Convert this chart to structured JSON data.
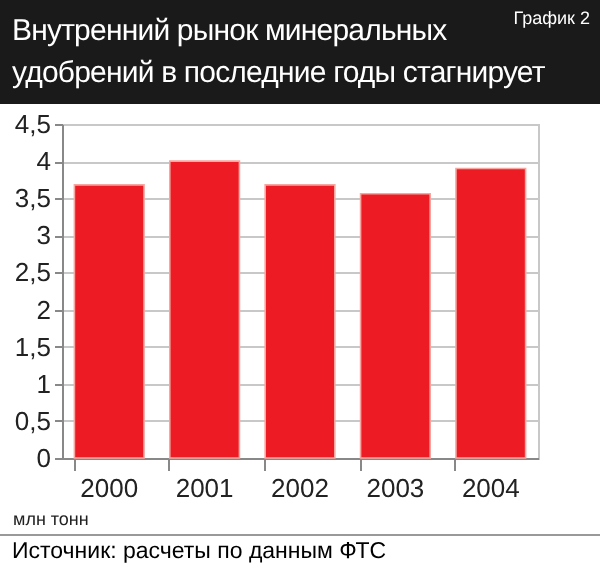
{
  "chart_data": {
    "type": "bar",
    "title": "Внутренний рынок минеральных удобрений в последние годы стагнирует",
    "subtitle": "График 2",
    "categories": [
      "2000",
      "2001",
      "2002",
      "2003",
      "2004"
    ],
    "values": [
      3.68,
      4.0,
      3.68,
      3.56,
      3.9
    ],
    "color": "#ed1c24",
    "ylabel": "млн тонн",
    "ylim": [
      0,
      4.5
    ],
    "yticks": [
      0,
      {
        "value": 0.5,
        "label": "0,5"
      },
      1,
      {
        "value": 1.5,
        "label": "1,5"
      },
      2,
      {
        "value": 2.5,
        "label": "2,5"
      },
      3,
      {
        "value": 3.5,
        "label": "3,5"
      },
      4,
      {
        "value": 4.5,
        "label": "4,5"
      }
    ],
    "grid": "y",
    "annotations": [
      "Источник: расчеты по данным ФТС"
    ]
  }
}
